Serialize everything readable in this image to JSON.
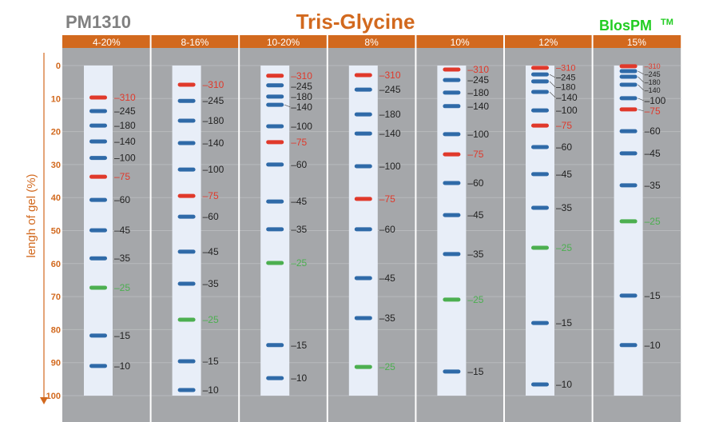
{
  "product": "PM1310",
  "title": "Tris-Glycine",
  "brand": "BlosPM",
  "brand_tm": "TM",
  "y_axis": {
    "label": "lengh of gel (%)",
    "ticks": [
      0,
      10,
      20,
      30,
      40,
      50,
      60,
      70,
      80,
      90,
      100
    ],
    "range": [
      0,
      100
    ]
  },
  "colors": {
    "header": "#d2691e",
    "panel": "#a5a7aa",
    "lane": "#e8eef8",
    "band_blue": "#2f6aa8",
    "band_red": "#e0392b",
    "band_green": "#4caf50",
    "label_red": "#e0392b",
    "label_green": "#4caf50",
    "title": "#d2691e",
    "brand": "#22cc22"
  },
  "lanes": [
    {
      "gel": "4-20%",
      "bands": [
        [
          310,
          9.7
        ],
        [
          245,
          13.8
        ],
        [
          180,
          18.2
        ],
        [
          140,
          23
        ],
        [
          100,
          28
        ],
        [
          75,
          33.7
        ],
        [
          60,
          40.7
        ],
        [
          45,
          49.9
        ],
        [
          35,
          58.4
        ],
        [
          25,
          67.3
        ],
        [
          15,
          81.8
        ],
        [
          10,
          91
        ]
      ]
    },
    {
      "gel": "8-16%",
      "bands": [
        [
          310,
          5.8
        ],
        [
          245,
          10.7
        ],
        [
          180,
          16.7
        ],
        [
          140,
          23.5
        ],
        [
          100,
          31.5
        ],
        [
          75,
          39.5
        ],
        [
          60,
          45.8
        ],
        [
          45,
          56.4
        ],
        [
          35,
          66.1
        ],
        [
          25,
          77
        ],
        [
          15,
          89.6
        ],
        [
          10,
          98.3
        ]
      ]
    },
    {
      "gel": "10-20%",
      "bands": [
        [
          310,
          3.1
        ],
        [
          245,
          6
        ],
        [
          180,
          9.4
        ],
        [
          140,
          11.9
        ],
        [
          100,
          18.4
        ],
        [
          75,
          23.2
        ],
        [
          60,
          30
        ],
        [
          45,
          41.2
        ],
        [
          35,
          49.6
        ],
        [
          25,
          59.8
        ],
        [
          15,
          84.7
        ],
        [
          10,
          94.7
        ]
      ]
    },
    {
      "gel": "8%",
      "bands": [
        [
          310,
          2.9
        ],
        [
          245,
          7.3
        ],
        [
          180,
          14.8
        ],
        [
          140,
          20.6
        ],
        [
          100,
          30.5
        ],
        [
          75,
          40.4
        ],
        [
          60,
          49.6
        ],
        [
          45,
          64.4
        ],
        [
          35,
          76.5
        ],
        [
          25,
          91.3
        ]
      ]
    },
    {
      "gel": "10%",
      "bands": [
        [
          310,
          1.2
        ],
        [
          245,
          4.4
        ],
        [
          180,
          8.2
        ],
        [
          140,
          12.3
        ],
        [
          100,
          20.8
        ],
        [
          75,
          26.9
        ],
        [
          60,
          35.6
        ],
        [
          45,
          45.3
        ],
        [
          35,
          57.1
        ],
        [
          25,
          70.9
        ],
        [
          15,
          92.7
        ]
      ]
    },
    {
      "gel": "12%",
      "bands": [
        [
          310,
          0.7
        ],
        [
          245,
          2.7
        ],
        [
          180,
          4.8
        ],
        [
          140,
          8
        ],
        [
          100,
          13.6
        ],
        [
          75,
          18.2
        ],
        [
          60,
          24.7
        ],
        [
          45,
          32.9
        ],
        [
          35,
          43.1
        ],
        [
          25,
          55.2
        ],
        [
          15,
          78
        ],
        [
          10,
          96.6
        ]
      ]
    },
    {
      "gel": "15%",
      "bands": [
        [
          310,
          0.2
        ],
        [
          245,
          1.7
        ],
        [
          180,
          3.4
        ],
        [
          140,
          5.8
        ],
        [
          100,
          9.9
        ],
        [
          75,
          13.3
        ],
        [
          60,
          19.9
        ],
        [
          45,
          26.6
        ],
        [
          35,
          36.3
        ],
        [
          25,
          47.2
        ],
        [
          15,
          69.7
        ],
        [
          10,
          84.7
        ]
      ]
    }
  ]
}
